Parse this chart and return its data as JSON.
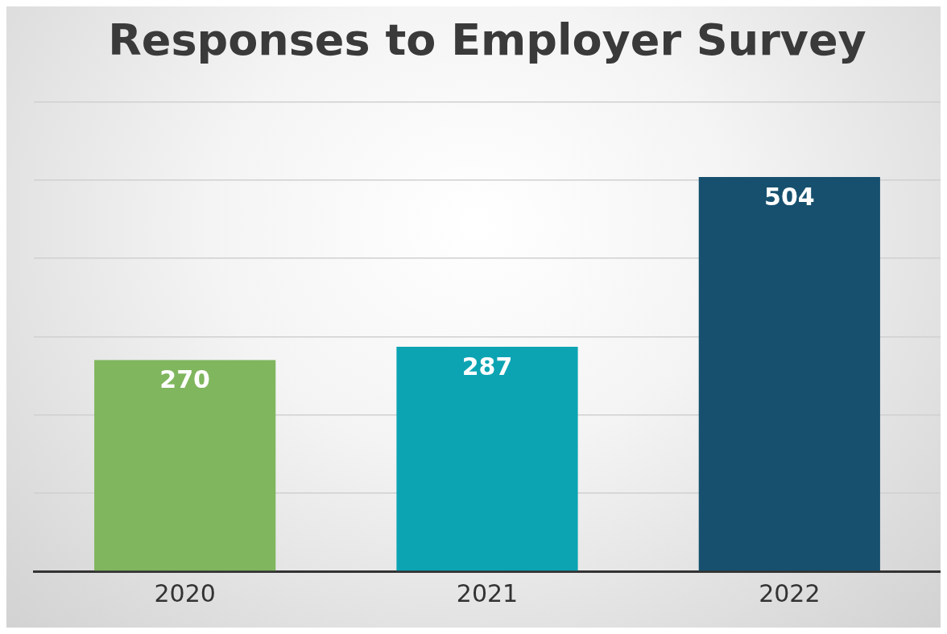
{
  "chart_data": {
    "type": "bar",
    "title": "Responses to Employer Survey",
    "categories": [
      "2020",
      "2021",
      "2022"
    ],
    "values": [
      270,
      287,
      504
    ],
    "colors": [
      "#80b65e",
      "#0ca4b3",
      "#17506e"
    ],
    "ylim": [
      0,
      600
    ],
    "yticks": [
      {
        "value": 0,
        "label": null
      },
      {
        "value": 100,
        "label": null
      },
      {
        "value": 200,
        "label": null
      },
      {
        "value": 300,
        "label": null
      },
      {
        "value": 400,
        "label": null
      },
      {
        "value": 500,
        "label": null
      },
      {
        "value": 600,
        "label": null
      }
    ],
    "grid": "y",
    "tick_labels": "x",
    "data_labels": true,
    "legend": false
  }
}
